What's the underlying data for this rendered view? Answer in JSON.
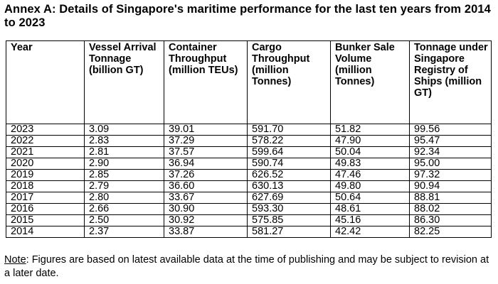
{
  "title": "Annex A: Details of Singapore's maritime performance for the last ten years from 2014 to 2023",
  "table": {
    "headers": [
      "Year",
      "Vessel Arrival Tonnage (billion GT)",
      "Container Throughput (million TEUs)",
      "Cargo Throughput (million Tonnes)",
      "Bunker Sale Volume (million Tonnes)",
      "Tonnage under Singapore Registry of Ships (million GT)"
    ],
    "rows": [
      [
        "2023",
        "3.09",
        "39.01",
        "591.70",
        "51.82",
        "99.56"
      ],
      [
        "2022",
        "2.83",
        "37.29",
        "578.22",
        "47.90",
        "95.47"
      ],
      [
        "2021",
        "2.81",
        "37.57",
        "599.64",
        "50.04",
        "92.34"
      ],
      [
        "2020",
        "2.90",
        "36.94",
        "590.74",
        "49.83",
        "95.00"
      ],
      [
        "2019",
        "2.85",
        "37.26",
        "626.52",
        "47.46",
        "97.32"
      ],
      [
        "2018",
        "2.79",
        "36.60",
        "630.13",
        "49.80",
        "90.94"
      ],
      [
        "2017",
        "2.80",
        "33.67",
        "627.69",
        "50.64",
        "88.81"
      ],
      [
        "2016",
        "2.66",
        "30.90",
        "593.30",
        "48.61",
        "88.02"
      ],
      [
        "2015",
        "2.50",
        "30.92",
        "575.85",
        "45.16",
        "86.30"
      ],
      [
        "2014",
        "2.37",
        "33.87",
        "581.27",
        "42.42",
        "82.25"
      ]
    ]
  },
  "note": {
    "label": "Note",
    "text": ": Figures are based on latest available data at the time of publishing and may be subject to revision at a later date."
  }
}
